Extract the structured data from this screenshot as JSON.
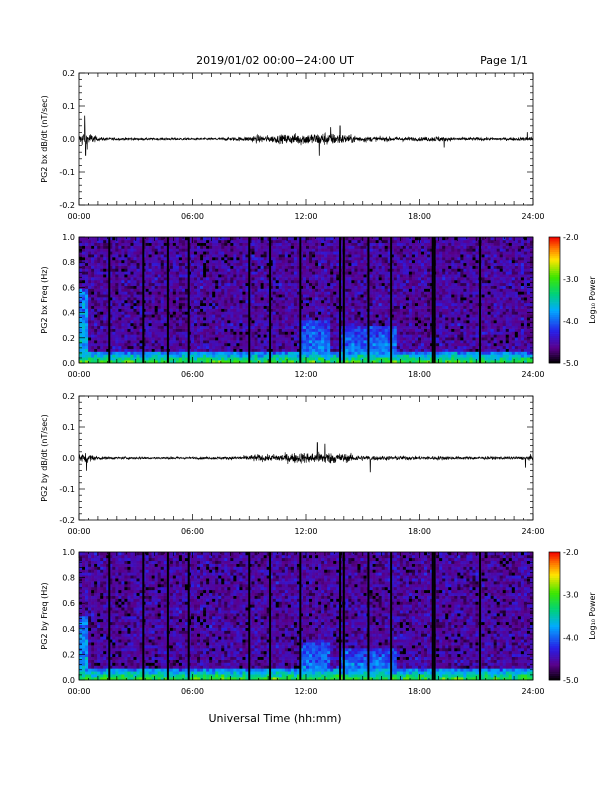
{
  "header": {
    "title": "2019/01/02  00:00−24:00 UT",
    "page": "Page 1/1"
  },
  "footer": {
    "xlabel": "Universal Time (hh:mm)"
  },
  "chart_data": [
    {
      "type": "line",
      "panel": "bx-dbdt",
      "ylabel": "PG2 bx dB/dt (nT/sec)",
      "xlim": [
        0,
        24
      ],
      "ylim": [
        -0.2,
        0.2
      ],
      "xticks": [
        "00:00",
        "06:00",
        "12:00",
        "18:00",
        "24:00"
      ],
      "yticks": [
        "-0.2",
        "-0.1",
        "0.0",
        "0.1",
        "0.2"
      ],
      "envelope": {
        "hours": [
          0,
          0.3,
          0.6,
          1,
          1.5,
          2,
          3,
          4,
          5,
          6,
          7,
          8,
          8.8,
          9.3,
          10,
          10.5,
          11,
          11.5,
          12,
          12.5,
          13,
          13.5,
          14,
          14.5,
          15,
          16,
          17,
          18,
          19,
          19.5,
          20,
          21,
          22,
          23,
          23.6,
          24
        ],
        "amplitude": [
          0.02,
          0.05,
          0.03,
          0.01,
          0.008,
          0.007,
          0.007,
          0.006,
          0.007,
          0.006,
          0.006,
          0.009,
          0.012,
          0.02,
          0.018,
          0.022,
          0.025,
          0.03,
          0.032,
          0.03,
          0.035,
          0.03,
          0.025,
          0.02,
          0.015,
          0.012,
          0.012,
          0.01,
          0.015,
          0.01,
          0.009,
          0.009,
          0.008,
          0.008,
          0.01,
          0.015
        ]
      },
      "spikes": [
        [
          0.3,
          0.07
        ],
        [
          0.35,
          -0.05
        ],
        [
          12.7,
          -0.05
        ],
        [
          13.3,
          0.035
        ],
        [
          13.8,
          0.04
        ],
        [
          19.3,
          -0.025
        ],
        [
          23.7,
          0.02
        ]
      ]
    },
    {
      "type": "heatmap",
      "panel": "bx-spectrogram",
      "ylabel": "PG2 bx Freq (Hz)",
      "xlim": [
        0,
        24
      ],
      "ylim": [
        0,
        1.0
      ],
      "xticks": [
        "00:00",
        "06:00",
        "12:00",
        "18:00",
        "24:00"
      ],
      "yticks": [
        "0.0",
        "0.2",
        "0.4",
        "0.6",
        "0.8",
        "1.0"
      ],
      "colorbar": {
        "label": "Log₁₀ Power",
        "range": [
          -5.0,
          -2.0
        ],
        "ticks": [
          "-2.0",
          "-3.0",
          "-4.0",
          "-5.0"
        ]
      },
      "data_gaps_hours": [
        1.6,
        3.4,
        4.7,
        5.8,
        9.0,
        10.1,
        11.7,
        13.8,
        14.0,
        15.3,
        16.5,
        18.7,
        18.8,
        21.2
      ],
      "enhanced_power": [
        {
          "hours": [
            0.0,
            0.5
          ],
          "freq_max": 0.6,
          "log_power": -3.6
        },
        {
          "hours": [
            11.7,
            13.2
          ],
          "freq_max": 0.35,
          "log_power": -3.8
        },
        {
          "hours": [
            13.7,
            16.8
          ],
          "freq_max": 0.3,
          "log_power": -3.8
        }
      ],
      "low_freq_band": {
        "freq_max": 0.08,
        "log_power": -3.0
      }
    },
    {
      "type": "line",
      "panel": "by-dbdt",
      "ylabel": "PG2 by dB/dt (nT/sec)",
      "xlim": [
        0,
        24
      ],
      "ylim": [
        -0.2,
        0.2
      ],
      "xticks": [
        "00:00",
        "06:00",
        "12:00",
        "18:00",
        "24:00"
      ],
      "yticks": [
        "-0.2",
        "-0.1",
        "0.0",
        "0.1",
        "0.2"
      ],
      "envelope": {
        "hours": [
          0,
          0.3,
          0.6,
          1,
          1.5,
          2,
          3,
          4,
          5,
          6,
          7,
          8,
          8.8,
          9.3,
          10,
          10.5,
          11,
          11.5,
          12,
          12.5,
          13,
          13.5,
          14,
          14.5,
          15,
          16,
          17,
          18,
          19,
          19.5,
          20,
          21,
          22,
          23,
          23.6,
          24
        ],
        "amplitude": [
          0.02,
          0.03,
          0.02,
          0.01,
          0.008,
          0.007,
          0.007,
          0.006,
          0.007,
          0.006,
          0.007,
          0.009,
          0.013,
          0.02,
          0.018,
          0.022,
          0.025,
          0.028,
          0.03,
          0.03,
          0.035,
          0.03,
          0.025,
          0.02,
          0.015,
          0.012,
          0.012,
          0.01,
          0.012,
          0.01,
          0.009,
          0.009,
          0.008,
          0.008,
          0.01,
          0.018
        ]
      },
      "spikes": [
        [
          0.4,
          -0.04
        ],
        [
          12.6,
          0.05
        ],
        [
          13.0,
          0.045
        ],
        [
          15.4,
          -0.045
        ],
        [
          23.6,
          -0.03
        ]
      ]
    },
    {
      "type": "heatmap",
      "panel": "by-spectrogram",
      "ylabel": "PG2 by Freq (Hz)",
      "xlim": [
        0,
        24
      ],
      "ylim": [
        0,
        1.0
      ],
      "xticks": [
        "00:00",
        "06:00",
        "12:00",
        "18:00",
        "24:00"
      ],
      "yticks": [
        "0.0",
        "0.2",
        "0.4",
        "0.6",
        "0.8",
        "1.0"
      ],
      "colorbar": {
        "label": "Log₁₀ Power",
        "range": [
          -5.0,
          -2.0
        ],
        "ticks": [
          "-2.0",
          "-3.0",
          "-4.0",
          "-5.0"
        ]
      },
      "data_gaps_hours": [
        1.6,
        3.4,
        4.7,
        5.8,
        9.0,
        10.1,
        11.7,
        13.8,
        14.0,
        15.3,
        16.5,
        18.7,
        18.8,
        21.2
      ],
      "enhanced_power": [
        {
          "hours": [
            0.0,
            0.5
          ],
          "freq_max": 0.5,
          "log_power": -3.6
        },
        {
          "hours": [
            11.7,
            13.2
          ],
          "freq_max": 0.3,
          "log_power": -3.8
        },
        {
          "hours": [
            13.7,
            16.8
          ],
          "freq_max": 0.25,
          "log_power": -3.8
        }
      ],
      "low_freq_band": {
        "freq_max": 0.08,
        "log_power": -3.0
      }
    }
  ]
}
